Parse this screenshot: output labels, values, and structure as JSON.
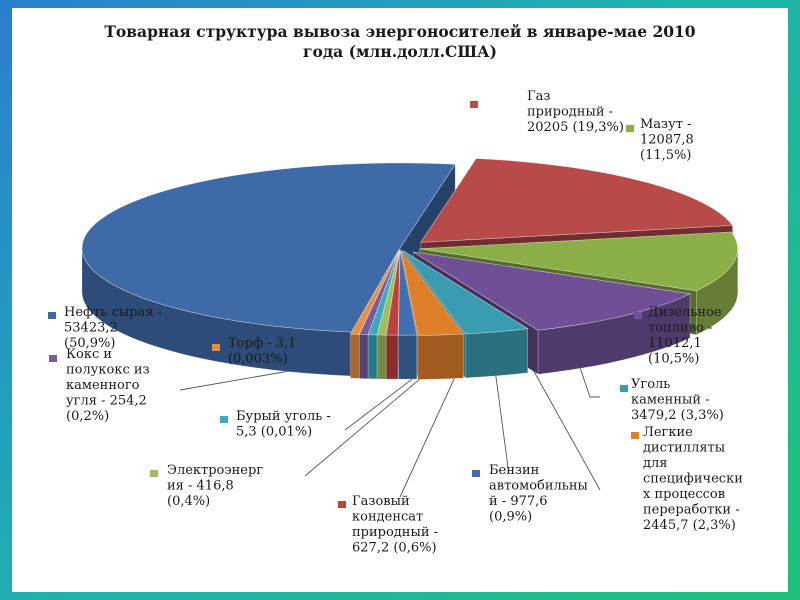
{
  "chart_data": {
    "type": "pie",
    "style": "3d-exploded",
    "title_line1": "Товарная структура вывоза энергоносителей в январе-мае 2010",
    "title_line2": "года (млн.долл.США)",
    "unit": "млн.долл.США",
    "slices": [
      {
        "name": "Газ природный",
        "value": 20205,
        "percent": "19,3%",
        "color": "#b84a4a",
        "label_lines": [
          "Газ",
          "природный -",
          "20205 (19,3%)"
        ]
      },
      {
        "name": "Мазут",
        "value": 12087.8,
        "percent": "11,5%",
        "color": "#8cae48",
        "label_lines": [
          "Мазут -",
          "12087,8",
          "(11,5%)"
        ]
      },
      {
        "name": "Дизельное топливо",
        "value": 11012.1,
        "percent": "10,5%",
        "color": "#6f4f95",
        "label_lines": [
          "Дизельное",
          "топливо -",
          "11012,1",
          "(10,5%)"
        ]
      },
      {
        "name": "Уголь каменный",
        "value": 3479.2,
        "percent": "3,3%",
        "color": "#3a9cb0",
        "label_lines": [
          "Уголь",
          "каменный -",
          "3479,2 (3,3%)"
        ]
      },
      {
        "name": "Легкие дистилляты для специфических процессов переработки",
        "value": 2445.7,
        "percent": "2,3%",
        "color": "#e07f2a",
        "label_lines": [
          "Легкие",
          "дистилляты",
          "для",
          "специфически",
          "х процессов",
          "переработки -",
          "2445,7 (2,3%)"
        ]
      },
      {
        "name": "Бензин автомобильный",
        "value": 977.6,
        "percent": "0,9%",
        "color": "#3f6fae",
        "label_lines": [
          "Бензин",
          "автомобильны",
          "й - 977,6",
          "(0,9%)"
        ]
      },
      {
        "name": "Газовый конденсат природный",
        "value": 627.2,
        "percent": "0,6%",
        "color": "#c04040",
        "label_lines": [
          "Газовый",
          "конденсат",
          "природный -",
          "627,2 (0,6%)"
        ]
      },
      {
        "name": "Электроэнергия",
        "value": 416.8,
        "percent": "0,4%",
        "color": "#9cbf5a",
        "label_lines": [
          "Электроэнерг",
          "ия - 416,8",
          "(0,4%)"
        ]
      },
      {
        "name": "Бурый уголь",
        "value": 5.3,
        "percent": "0,01%",
        "color": "#3aa8c0",
        "label_lines": [
          "Бурый уголь -",
          "5,3 (0,01%)"
        ]
      },
      {
        "name": "Кокс и полукокс из каменного угля",
        "value": 254.2,
        "percent": "0,2%",
        "color": "#7a5aa0",
        "label_lines": [
          "Кокс и",
          "полукокс из",
          "каменного",
          "угля - 254,2",
          "(0,2%)"
        ]
      },
      {
        "name": "Торф",
        "value": 3.1,
        "percent": "0,003%",
        "color": "#e89040",
        "label_lines": [
          "Торф - 3,1",
          "(0,003%)"
        ]
      },
      {
        "name": "Нефть сырая",
        "value": 53423.2,
        "percent": "50,9%",
        "color": "#3e6aa8",
        "label_lines": [
          "Нефть сырая -",
          "53423,2",
          "(50,9%)"
        ]
      }
    ]
  }
}
